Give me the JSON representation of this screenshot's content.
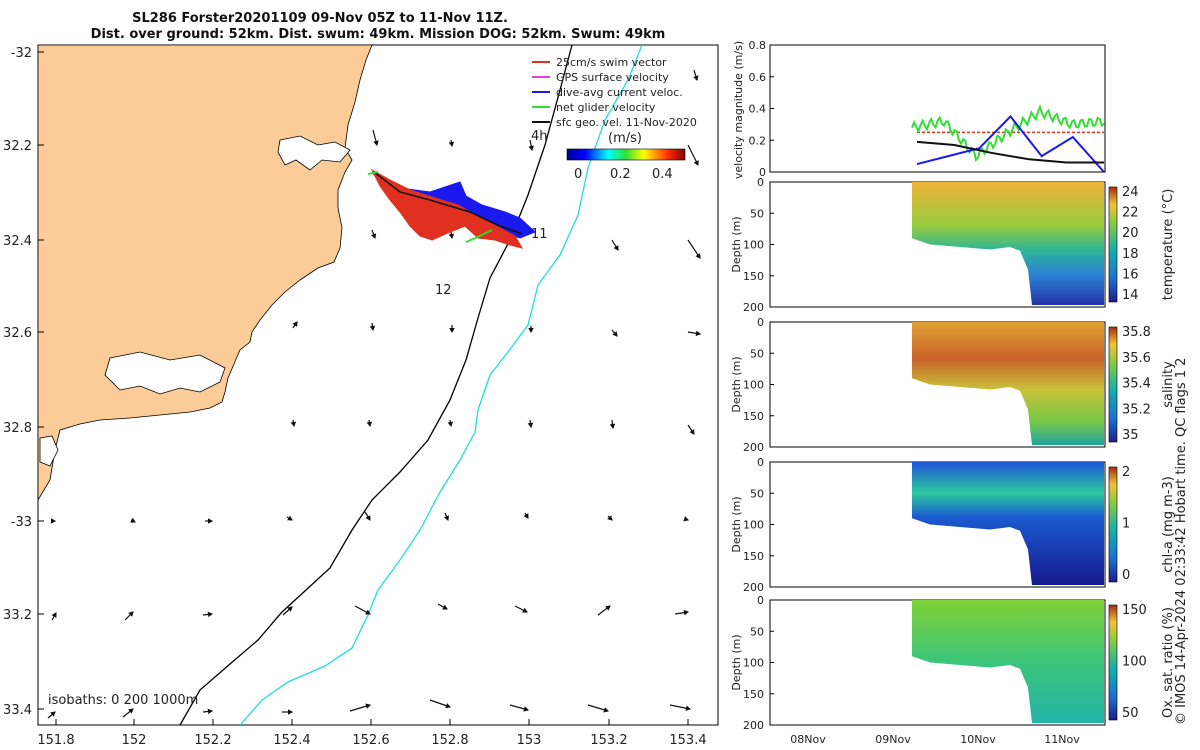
{
  "title": {
    "line1": "SL286 Forster20201109 09-Nov 05Z to 11-Nov 11Z.",
    "line2": "Dist. over ground: 52km. Dist. swum: 49km. Mission DOG: 52km. Swum: 49km"
  },
  "map": {
    "lon_ticks": [
      "151.8",
      "152",
      "152.2",
      "152.4",
      "152.6",
      "152.8",
      "153",
      "153.2",
      "153.4"
    ],
    "lat_ticks": [
      "-32",
      "32.2",
      "32.4",
      "32.6",
      "32.8",
      "-33",
      "33.2",
      "33.4"
    ],
    "legend": [
      {
        "label": "25cm/s swim vector",
        "color": "#e03020"
      },
      {
        "label": "GPS surface velocity",
        "color": "#e040e0"
      },
      {
        "label": "dive-avg current veloc.",
        "color": "#1a1aee"
      },
      {
        "label": "net glider velocity",
        "color": "#33dd33"
      },
      {
        "label": "sfc geo. vel. 11-Nov-2020",
        "color": "#111111"
      }
    ],
    "colorbar": {
      "unit": "(m/s)",
      "ticks": [
        "0",
        "0.2",
        "0.4"
      ]
    },
    "annotations": {
      "h4": "4h",
      "d11": "11",
      "d12": "12"
    },
    "isobaths_text": "isobaths: 0   200  1000m"
  },
  "chart_data": [
    {
      "type": "line",
      "ylabel": "velocity magnitude (m/s)",
      "ylim": [
        0,
        0.8
      ],
      "yticks": [
        "0",
        "0.2",
        "0.4",
        "0.6",
        "0.8"
      ],
      "xticks": [
        "08Nov",
        "09Nov",
        "10Nov",
        "11Nov"
      ],
      "series": [
        {
          "color": "#e03020",
          "values": [
            0.25,
            0.25
          ]
        },
        {
          "color": "#33dd33",
          "values": [
            0.28,
            0.32,
            0.1,
            0.25,
            0.38,
            0.3,
            0.32
          ]
        },
        {
          "color": "#1a1aee",
          "values": [
            0.05,
            0.1,
            0.15,
            0.35,
            0.1,
            0.22,
            0.0
          ]
        },
        {
          "color": "#111111",
          "values": [
            0.19,
            0.17,
            0.12,
            0.08,
            0.06,
            0.06
          ]
        }
      ]
    },
    {
      "type": "heatmap",
      "variable": "temperature (°C)",
      "ylabel": "Depth (m)",
      "yticks": [
        "0",
        "50",
        "100",
        "150",
        "200"
      ],
      "colorbar_ticks": [
        "24",
        "22",
        "20",
        "18",
        "16",
        "14"
      ]
    },
    {
      "type": "heatmap",
      "variable": "salinity",
      "ylabel": "Depth (m)",
      "yticks": [
        "0",
        "50",
        "100",
        "150",
        "200"
      ],
      "colorbar_ticks": [
        "35.8",
        "35.6",
        "35.4",
        "35.2",
        "35"
      ]
    },
    {
      "type": "heatmap",
      "variable": "chl-a (mg m-3)",
      "ylabel": "Depth (m)",
      "yticks": [
        "0",
        "50",
        "100",
        "150",
        "200"
      ],
      "colorbar_ticks": [
        "2",
        "1",
        "0"
      ]
    },
    {
      "type": "heatmap",
      "variable": "Ox. sat. ratio (%)",
      "ylabel": "Depth (m)",
      "yticks": [
        "0",
        "50",
        "100",
        "150",
        "200"
      ],
      "colorbar_ticks": [
        "150",
        "100",
        "50"
      ]
    }
  ],
  "footer": "© IMOS 14-Apr-2024 02:33:42 Hobart time. QC flags 1  2"
}
